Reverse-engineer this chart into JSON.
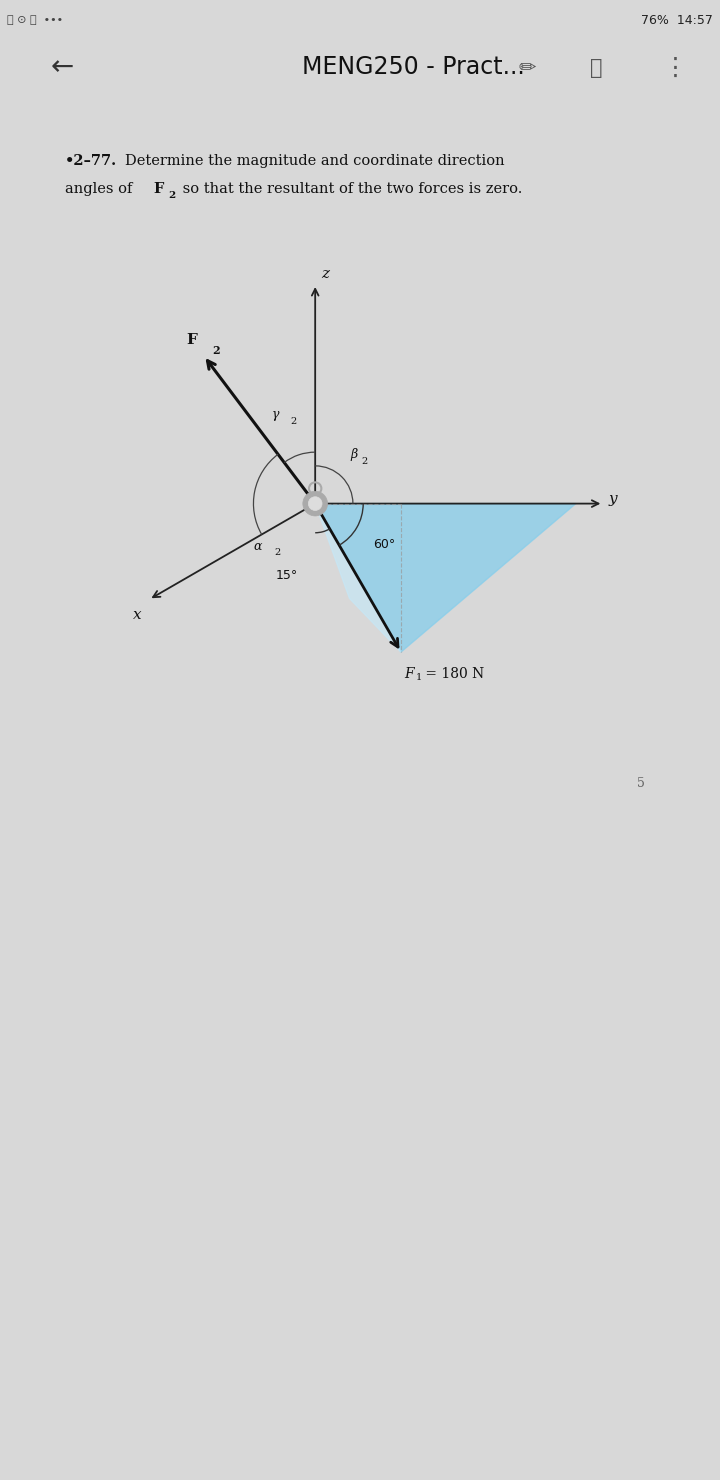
{
  "bg_color": "#d8d8d8",
  "page_bg": "#ffffff",
  "status_bar_bg": "#e0e0e0",
  "header_bg": "#f5f5f5",
  "problem_number": "•2–77.",
  "problem_line1": "Determine the magnitude and coordinate direction",
  "problem_line2": "angles of F",
  "problem_line2b": "2",
  "problem_line2c": " so that the resultant of the two forces is zero.",
  "header_text": "MENG250 - Pract...",
  "F1_label": "F",
  "F1_sub": "1",
  "F1_val": " = 180 N",
  "F2_label": "F",
  "F2_sub": "2",
  "z_label": "z",
  "y_label": "y",
  "x_label": "x",
  "gamma_label": "γ",
  "gamma_sub": "2",
  "beta_label": "β",
  "beta_sub": "2",
  "alpha_label": "α",
  "alpha_sub": "2",
  "angle_60_label": "60°",
  "angle_15_label": "15°",
  "triangle_color1": "#87ceeb",
  "triangle_color2": "#add8e6",
  "triangle_color3": "#c5e8f5",
  "page_number": "5",
  "axis_color": "#222222",
  "arrow_color": "#111111"
}
